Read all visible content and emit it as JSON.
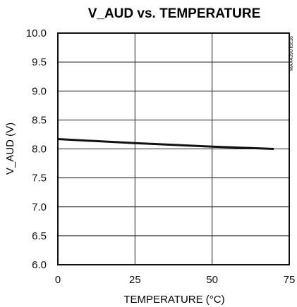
{
  "chart_data": {
    "type": "line",
    "title": "V_AUD vs. TEMPERATURE",
    "xlabel": "TEMPERATURE (°C)",
    "ylabel": "V_AUD (V)",
    "xlim": [
      0,
      75
    ],
    "ylim": [
      6.0,
      10.0
    ],
    "x_ticks": [
      0,
      25,
      50,
      75
    ],
    "x_tick_labels": [
      "0",
      "25",
      "50",
      "75"
    ],
    "y_ticks": [
      6.0,
      6.5,
      7.0,
      7.5,
      8.0,
      8.5,
      9.0,
      9.5,
      10.0
    ],
    "y_tick_labels": [
      "6.0",
      "6.5",
      "7.0",
      "7.5",
      "8.0",
      "8.5",
      "9.0",
      "9.5",
      "10.0"
    ],
    "grid": true,
    "series": [
      {
        "x": [
          0,
          25,
          50,
          70
        ],
        "y": [
          8.17,
          8.1,
          8.04,
          8.0
        ]
      }
    ],
    "annotation": "MAX4390 toc16"
  },
  "colors": {
    "axis": "#111111",
    "grid": "#222222",
    "line": "#111111",
    "background": "#ffffff"
  }
}
